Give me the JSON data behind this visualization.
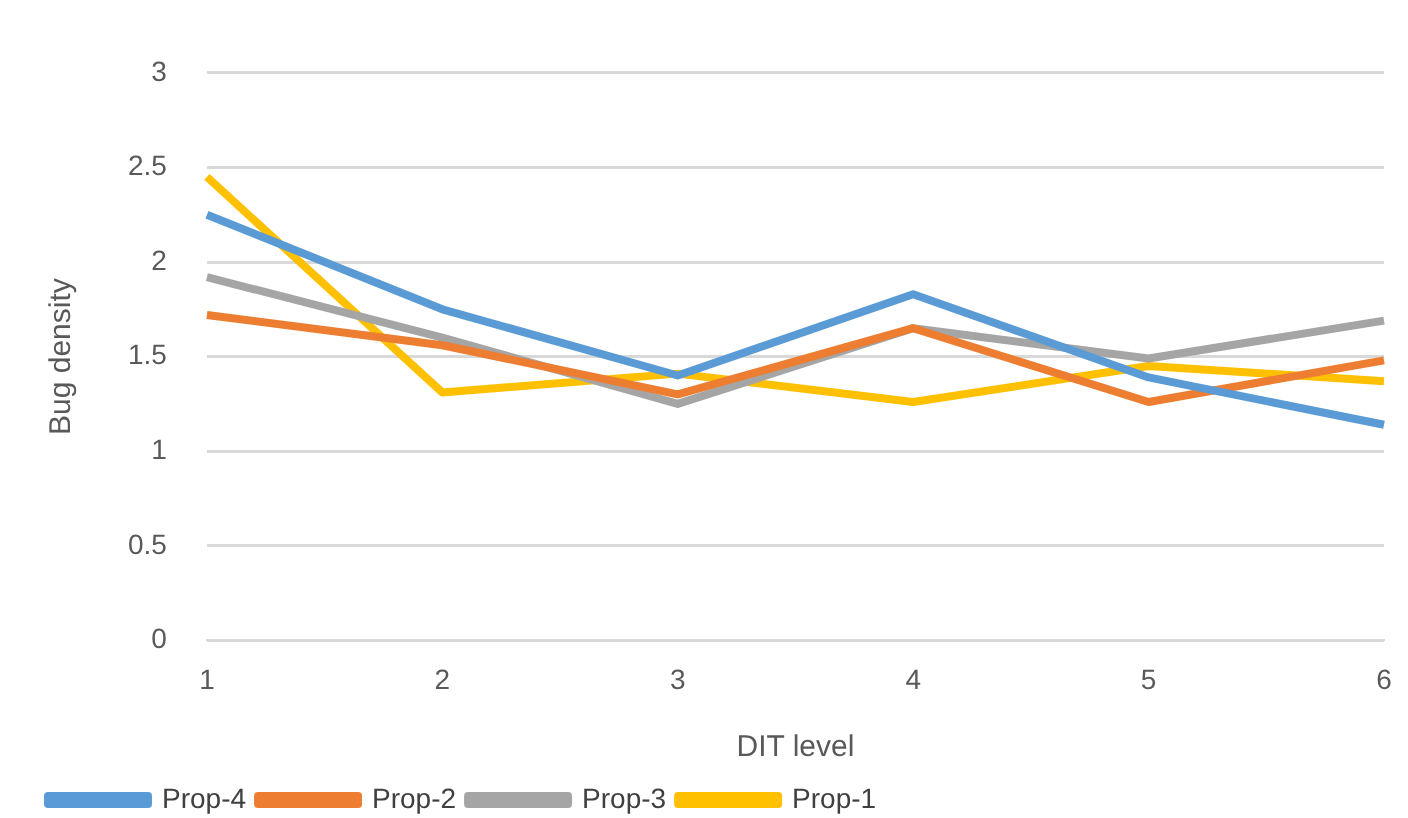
{
  "chart_data": {
    "type": "line",
    "xlabel": "DIT level",
    "ylabel": "Bug density",
    "categories": [
      "1",
      "2",
      "3",
      "4",
      "5",
      "6"
    ],
    "series": [
      {
        "name": "Prop-4",
        "color": "#5b9bd5",
        "values": [
          2.25,
          1.75,
          1.4,
          1.83,
          1.39,
          1.14
        ]
      },
      {
        "name": "Prop-2",
        "color": "#ed7d31",
        "values": [
          1.72,
          1.56,
          1.3,
          1.65,
          1.26,
          1.48
        ]
      },
      {
        "name": "Prop-3",
        "color": "#a5a5a5",
        "values": [
          1.92,
          1.6,
          1.25,
          1.65,
          1.49,
          1.69
        ]
      },
      {
        "name": "Prop-1",
        "color": "#ffc000",
        "values": [
          2.45,
          1.31,
          1.41,
          1.26,
          1.45,
          1.37
        ]
      }
    ],
    "ylim": [
      0,
      3
    ],
    "yticks": [
      0,
      0.5,
      1,
      1.5,
      2,
      2.5,
      3
    ],
    "grid": "y",
    "legend": "bottom left",
    "marker": "none",
    "line_style": "solid"
  }
}
